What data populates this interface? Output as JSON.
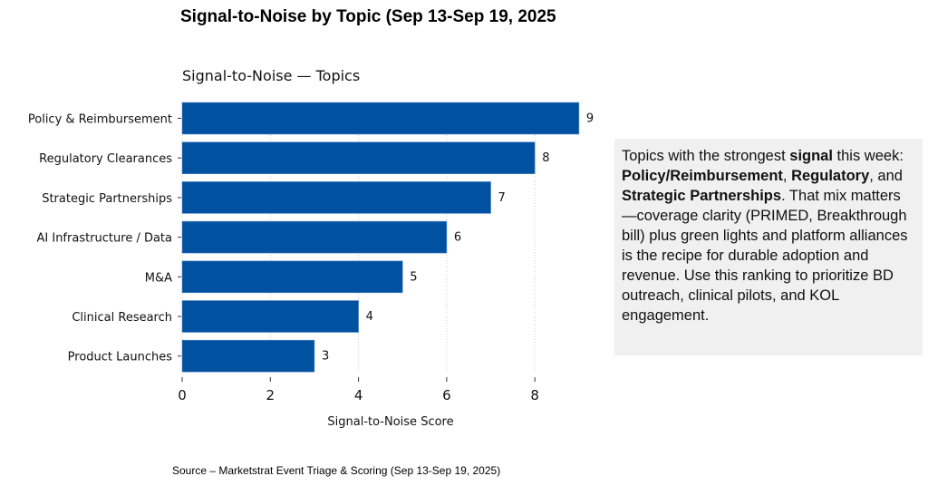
{
  "title": "Signal-to-Noise by Topic (Sep 13-Sep 19, 2025",
  "chart_data": {
    "type": "bar",
    "orientation": "horizontal",
    "title": "Signal-to-Noise — Topics",
    "xlabel": "Signal-to-Noise Score",
    "ylabel": "",
    "categories": [
      "Policy & Reimbursement",
      "Regulatory Clearances",
      "Strategic Partnerships",
      "AI Infrastructure / Data",
      "M&A",
      "Clinical Research",
      "Product Launches"
    ],
    "values": [
      9,
      8,
      7,
      6,
      5,
      4,
      3
    ],
    "xlim": [
      0,
      9.3
    ],
    "xticks": [
      0,
      2,
      4,
      6,
      8
    ],
    "grid": "x-dotted",
    "bar_color": "#0052a0"
  },
  "note": {
    "segments": [
      {
        "text": "Topics with the strongest ",
        "bold": false
      },
      {
        "text": "signal",
        "bold": true
      },
      {
        "text": " this week: ",
        "bold": false
      },
      {
        "text": "Policy/Reimbursement",
        "bold": true
      },
      {
        "text": ", ",
        "bold": false
      },
      {
        "text": "Regulatory",
        "bold": true
      },
      {
        "text": ", and ",
        "bold": false
      },
      {
        "text": "Strategic Partnerships",
        "bold": true
      },
      {
        "text": ". That mix matters—coverage clarity (PRIMED, Breakthrough bill) plus green lights and platform alliances is the recipe for durable adoption and revenue. Use this ranking to prioritize BD outreach, clinical pilots, and KOL engagement.",
        "bold": false
      }
    ]
  },
  "source": "Source – Marketstrat Event Triage & Scoring (Sep 13-Sep 19, 2025)"
}
